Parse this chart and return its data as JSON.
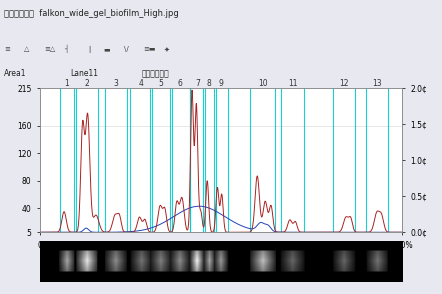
{
  "title": "プロファイル  falkon_wide_gel_biofilm_High.jpg",
  "ctrl_left": "Area1",
  "ctrl_mid": "Lane11",
  "ctrl_right": "六角式ごはま",
  "ylim_left": [
    5,
    215
  ],
  "ylim_right": [
    0.0,
    2.0
  ],
  "yticks_left": [
    5,
    40,
    80,
    120,
    160,
    215
  ],
  "ytick_labels_left": [
    "5",
    "40",
    "80",
    "120",
    "160",
    "215"
  ],
  "yticks_right": [
    0.0,
    0.5,
    1.0,
    1.5,
    2.0
  ],
  "ytick_labels_right": [
    "0.0¢",
    "0.5¢",
    "1.0¢",
    "1.5¢",
    "2.0¢"
  ],
  "lane_left_edges": [
    0.055,
    0.1,
    0.18,
    0.25,
    0.305,
    0.36,
    0.415,
    0.45,
    0.48,
    0.58,
    0.665,
    0.81,
    0.9
  ],
  "lane_right_edges": [
    0.095,
    0.16,
    0.24,
    0.31,
    0.365,
    0.415,
    0.455,
    0.485,
    0.52,
    0.65,
    0.73,
    0.87,
    0.96
  ],
  "lane_labels": [
    "1",
    "2",
    "3",
    "4",
    "5",
    "6",
    "7",
    "8",
    "9",
    "10",
    "11",
    "12",
    "13"
  ],
  "bg_color": "#e8e8f0",
  "plot_bg_color": "#ffffff",
  "lane_line_color": "#00cccc",
  "red_line_color": "#aa2222",
  "blue_line_color": "#2244bb",
  "toolbar_bg": "#d4d4e4",
  "title_bg": "#c0c0d8",
  "ctrl_bg": "#e0e0ee"
}
